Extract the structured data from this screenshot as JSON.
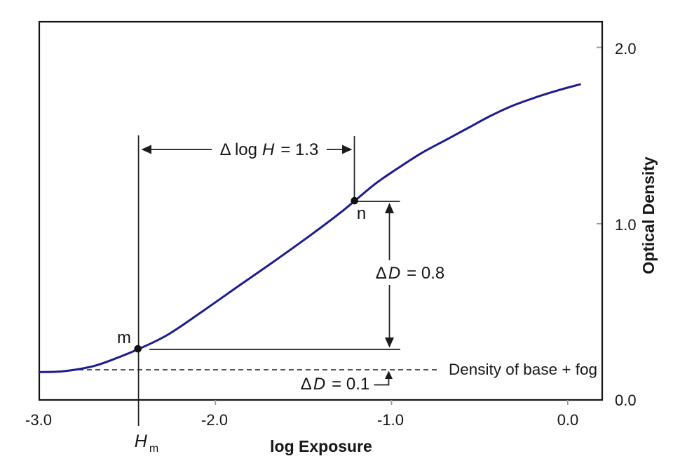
{
  "figure": {
    "description": "Photographic characteristic curve: optical density versus log exposure",
    "background_color": "#ffffff"
  },
  "chart_data": {
    "type": "line",
    "title": "",
    "xlabel": "log Exposure",
    "ylabel": "Optical Density",
    "xlim": [
      -3.0,
      0.2
    ],
    "ylim": [
      0.0,
      2.145
    ],
    "grid": false,
    "legend_position": "none",
    "x_ticks": [
      {
        "value": -3.0,
        "label": "-3.0"
      },
      {
        "value": -2.0,
        "label": "-2.0"
      },
      {
        "value": -1.0,
        "label": "-1.0"
      },
      {
        "value": 0.0,
        "label": "0.0"
      }
    ],
    "y_ticks": [
      {
        "value": 0.0,
        "label": "0.0"
      },
      {
        "value": 1.0,
        "label": "1.0"
      },
      {
        "value": 2.0,
        "label": "2.0"
      }
    ],
    "series": [
      {
        "name": "characteristic curve",
        "color": "#1c1c8f",
        "points": [
          [
            -3.0,
            0.158
          ],
          [
            -2.86,
            0.163
          ],
          [
            -2.7,
            0.19
          ],
          [
            -2.58,
            0.23
          ],
          [
            -2.44,
            0.287
          ],
          [
            -2.27,
            0.37
          ],
          [
            -2.07,
            0.505
          ],
          [
            -1.87,
            0.645
          ],
          [
            -1.67,
            0.784
          ],
          [
            -1.47,
            0.927
          ],
          [
            -1.28,
            1.07
          ],
          [
            -1.1,
            1.22
          ],
          [
            -0.97,
            1.31
          ],
          [
            -0.83,
            1.4
          ],
          [
            -0.7,
            1.47
          ],
          [
            -0.57,
            1.54
          ],
          [
            -0.44,
            1.61
          ],
          [
            -0.31,
            1.67
          ],
          [
            -0.17,
            1.72
          ],
          [
            -0.04,
            1.76
          ],
          [
            0.07,
            1.79
          ]
        ]
      }
    ],
    "points_of_interest": [
      {
        "id": "m",
        "label": "m",
        "log_exposure": -2.44,
        "density": 0.29
      },
      {
        "id": "n",
        "label": "n",
        "log_exposure": -1.21,
        "density": 1.13
      }
    ],
    "reference_line": {
      "label": "Density of base + fog",
      "density": 0.17,
      "style": "dashed"
    },
    "annotations": {
      "delta_log_h": {
        "prefix": "Δ log",
        "variable": "H",
        "suffix": "= 1.3",
        "value": 1.3
      },
      "delta_d_large": {
        "prefix": "Δ",
        "variable": "D",
        "suffix": "= 0.8",
        "value": 0.8
      },
      "delta_d_small": {
        "prefix": "Δ",
        "variable": "D",
        "suffix": "= 0.1",
        "value": 0.1
      },
      "h_m": {
        "variable": "H",
        "subscript": "m"
      }
    }
  }
}
